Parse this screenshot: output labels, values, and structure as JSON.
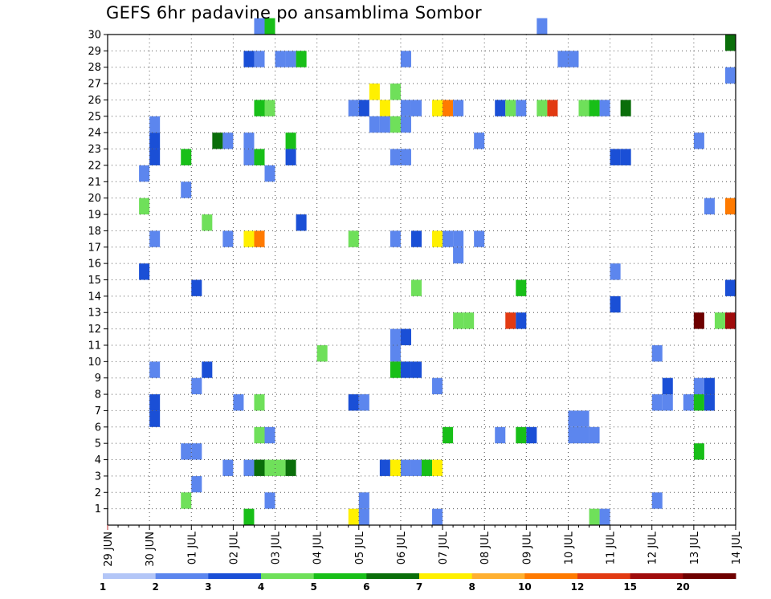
{
  "chart_data": {
    "type": "heatmap",
    "title": "GEFS 6hr padavine po ansamblima Sombor",
    "xlabel": "",
    "ylabel": "",
    "x_tick_labels": [
      "29 JUN",
      "30 JUN",
      "01 JUL",
      "02 JUL",
      "03 JUL",
      "04 JUL",
      "05 JUL",
      "06 JUL",
      "07 JUL",
      "08 JUL",
      "09 JUL",
      "10 JUL",
      "11 JUL",
      "12 JUL",
      "13 JUL",
      "14 JUL"
    ],
    "x_range": [
      0,
      60
    ],
    "steps_per_day": 4,
    "y_tick_labels": [
      "1",
      "2",
      "3",
      "4",
      "5",
      "6",
      "7",
      "8",
      "9",
      "10",
      "11",
      "12",
      "13",
      "14",
      "15",
      "16",
      "17",
      "18",
      "19",
      "20",
      "21",
      "22",
      "23",
      "24",
      "25",
      "26",
      "27",
      "28",
      "29",
      "30"
    ],
    "y_range": [
      0,
      30
    ],
    "grid": true,
    "colorbar": {
      "position": "bottom",
      "labels": [
        "1",
        "2",
        "3",
        "4",
        "5",
        "6",
        "7",
        "8",
        "10",
        "12",
        "15",
        "20"
      ],
      "colors": [
        "#b3c6f7",
        "#5c86ee",
        "#1a4fd6",
        "#6fe05a",
        "#18bf18",
        "#0a6e0a",
        "#fff000",
        "#ffb030",
        "#ff7a00",
        "#e23a12",
        "#a00c0c",
        "#6e0000"
      ]
    },
    "cells": [
      [
        14,
        30,
        1
      ],
      [
        15,
        30,
        4
      ],
      [
        41,
        30,
        1
      ],
      [
        59,
        29,
        5
      ],
      [
        13,
        28,
        2
      ],
      [
        14,
        28,
        1
      ],
      [
        16,
        28,
        1
      ],
      [
        17,
        28,
        1
      ],
      [
        18,
        28,
        4
      ],
      [
        28,
        28,
        1
      ],
      [
        43,
        28,
        1
      ],
      [
        44,
        28,
        1
      ],
      [
        59,
        27,
        1
      ],
      [
        25,
        26,
        6
      ],
      [
        27,
        26,
        3
      ],
      [
        14,
        25,
        4
      ],
      [
        15,
        25,
        3
      ],
      [
        23,
        25,
        1
      ],
      [
        24,
        25,
        2
      ],
      [
        26,
        25,
        6
      ],
      [
        28,
        25,
        1
      ],
      [
        29,
        25,
        1
      ],
      [
        31,
        25,
        6
      ],
      [
        32,
        25,
        8
      ],
      [
        33,
        25,
        1
      ],
      [
        37,
        25,
        2
      ],
      [
        38,
        25,
        3
      ],
      [
        39,
        25,
        1
      ],
      [
        41,
        25,
        3
      ],
      [
        42,
        25,
        9
      ],
      [
        45,
        25,
        3
      ],
      [
        46,
        25,
        4
      ],
      [
        47,
        25,
        1
      ],
      [
        49,
        25,
        5
      ],
      [
        4,
        24,
        1
      ],
      [
        25,
        24,
        1
      ],
      [
        26,
        24,
        1
      ],
      [
        27,
        24,
        3
      ],
      [
        28,
        24,
        1
      ],
      [
        4,
        23,
        2
      ],
      [
        10,
        23,
        5
      ],
      [
        11,
        23,
        1
      ],
      [
        13,
        23,
        1
      ],
      [
        17,
        23,
        4
      ],
      [
        35,
        23,
        1
      ],
      [
        56,
        23,
        1
      ],
      [
        4,
        22,
        2
      ],
      [
        7,
        22,
        4
      ],
      [
        13,
        22,
        1
      ],
      [
        14,
        22,
        4
      ],
      [
        17,
        22,
        2
      ],
      [
        27,
        22,
        1
      ],
      [
        28,
        22,
        1
      ],
      [
        48,
        22,
        2
      ],
      [
        49,
        22,
        2
      ],
      [
        3,
        21,
        1
      ],
      [
        15,
        21,
        1
      ],
      [
        7,
        20,
        1
      ],
      [
        3,
        19,
        3
      ],
      [
        57,
        19,
        1
      ],
      [
        59,
        19,
        8
      ],
      [
        9,
        18,
        3
      ],
      [
        18,
        18,
        2
      ],
      [
        4,
        17,
        1
      ],
      [
        11,
        17,
        1
      ],
      [
        13,
        17,
        6
      ],
      [
        14,
        17,
        8
      ],
      [
        23,
        17,
        3
      ],
      [
        27,
        17,
        1
      ],
      [
        29,
        17,
        2
      ],
      [
        31,
        17,
        6
      ],
      [
        32,
        17,
        1
      ],
      [
        33,
        17,
        1
      ],
      [
        35,
        17,
        1
      ],
      [
        33,
        16,
        1
      ],
      [
        3,
        15,
        2
      ],
      [
        48,
        15,
        1
      ],
      [
        8,
        14,
        2
      ],
      [
        29,
        14,
        3
      ],
      [
        39,
        14,
        4
      ],
      [
        59,
        14,
        2
      ],
      [
        48,
        13,
        2
      ],
      [
        33,
        12,
        3
      ],
      [
        34,
        12,
        3
      ],
      [
        38,
        12,
        9
      ],
      [
        39,
        12,
        2
      ],
      [
        56,
        12,
        11
      ],
      [
        58,
        12,
        3
      ],
      [
        59,
        12,
        10
      ],
      [
        27,
        11,
        1
      ],
      [
        28,
        11,
        2
      ],
      [
        20,
        10,
        3
      ],
      [
        27,
        10,
        1
      ],
      [
        52,
        10,
        1
      ],
      [
        4,
        9,
        1
      ],
      [
        9,
        9,
        2
      ],
      [
        27,
        9,
        4
      ],
      [
        28,
        9,
        2
      ],
      [
        29,
        9,
        2
      ],
      [
        8,
        8,
        1
      ],
      [
        31,
        8,
        1
      ],
      [
        53,
        8,
        2
      ],
      [
        56,
        8,
        1
      ],
      [
        57,
        8,
        2
      ],
      [
        4,
        7,
        2
      ],
      [
        12,
        7,
        1
      ],
      [
        14,
        7,
        3
      ],
      [
        23,
        7,
        2
      ],
      [
        24,
        7,
        1
      ],
      [
        52,
        7,
        1
      ],
      [
        53,
        7,
        1
      ],
      [
        55,
        7,
        1
      ],
      [
        56,
        7,
        4
      ],
      [
        57,
        7,
        2
      ],
      [
        4,
        6,
        2
      ],
      [
        44,
        6,
        1
      ],
      [
        45,
        6,
        1
      ],
      [
        14,
        5,
        3
      ],
      [
        15,
        5,
        1
      ],
      [
        32,
        5,
        4
      ],
      [
        37,
        5,
        1
      ],
      [
        39,
        5,
        4
      ],
      [
        40,
        5,
        2
      ],
      [
        44,
        5,
        1
      ],
      [
        45,
        5,
        1
      ],
      [
        46,
        5,
        1
      ],
      [
        7,
        4,
        1
      ],
      [
        8,
        4,
        1
      ],
      [
        56,
        4,
        4
      ],
      [
        11,
        3,
        1
      ],
      [
        13,
        3,
        1
      ],
      [
        14,
        3,
        5
      ],
      [
        15,
        3,
        3
      ],
      [
        16,
        3,
        3
      ],
      [
        17,
        3,
        5
      ],
      [
        26,
        3,
        2
      ],
      [
        27,
        3,
        6
      ],
      [
        28,
        3,
        1
      ],
      [
        29,
        3,
        1
      ],
      [
        30,
        3,
        4
      ],
      [
        31,
        3,
        6
      ],
      [
        8,
        2,
        1
      ],
      [
        7,
        1,
        3
      ],
      [
        15,
        1,
        1
      ],
      [
        24,
        1,
        1
      ],
      [
        52,
        1,
        1
      ],
      [
        13,
        0,
        4
      ],
      [
        23,
        0,
        6
      ],
      [
        24,
        0,
        1
      ],
      [
        31,
        0,
        1
      ],
      [
        46,
        0,
        3
      ],
      [
        47,
        0,
        1
      ]
    ]
  }
}
